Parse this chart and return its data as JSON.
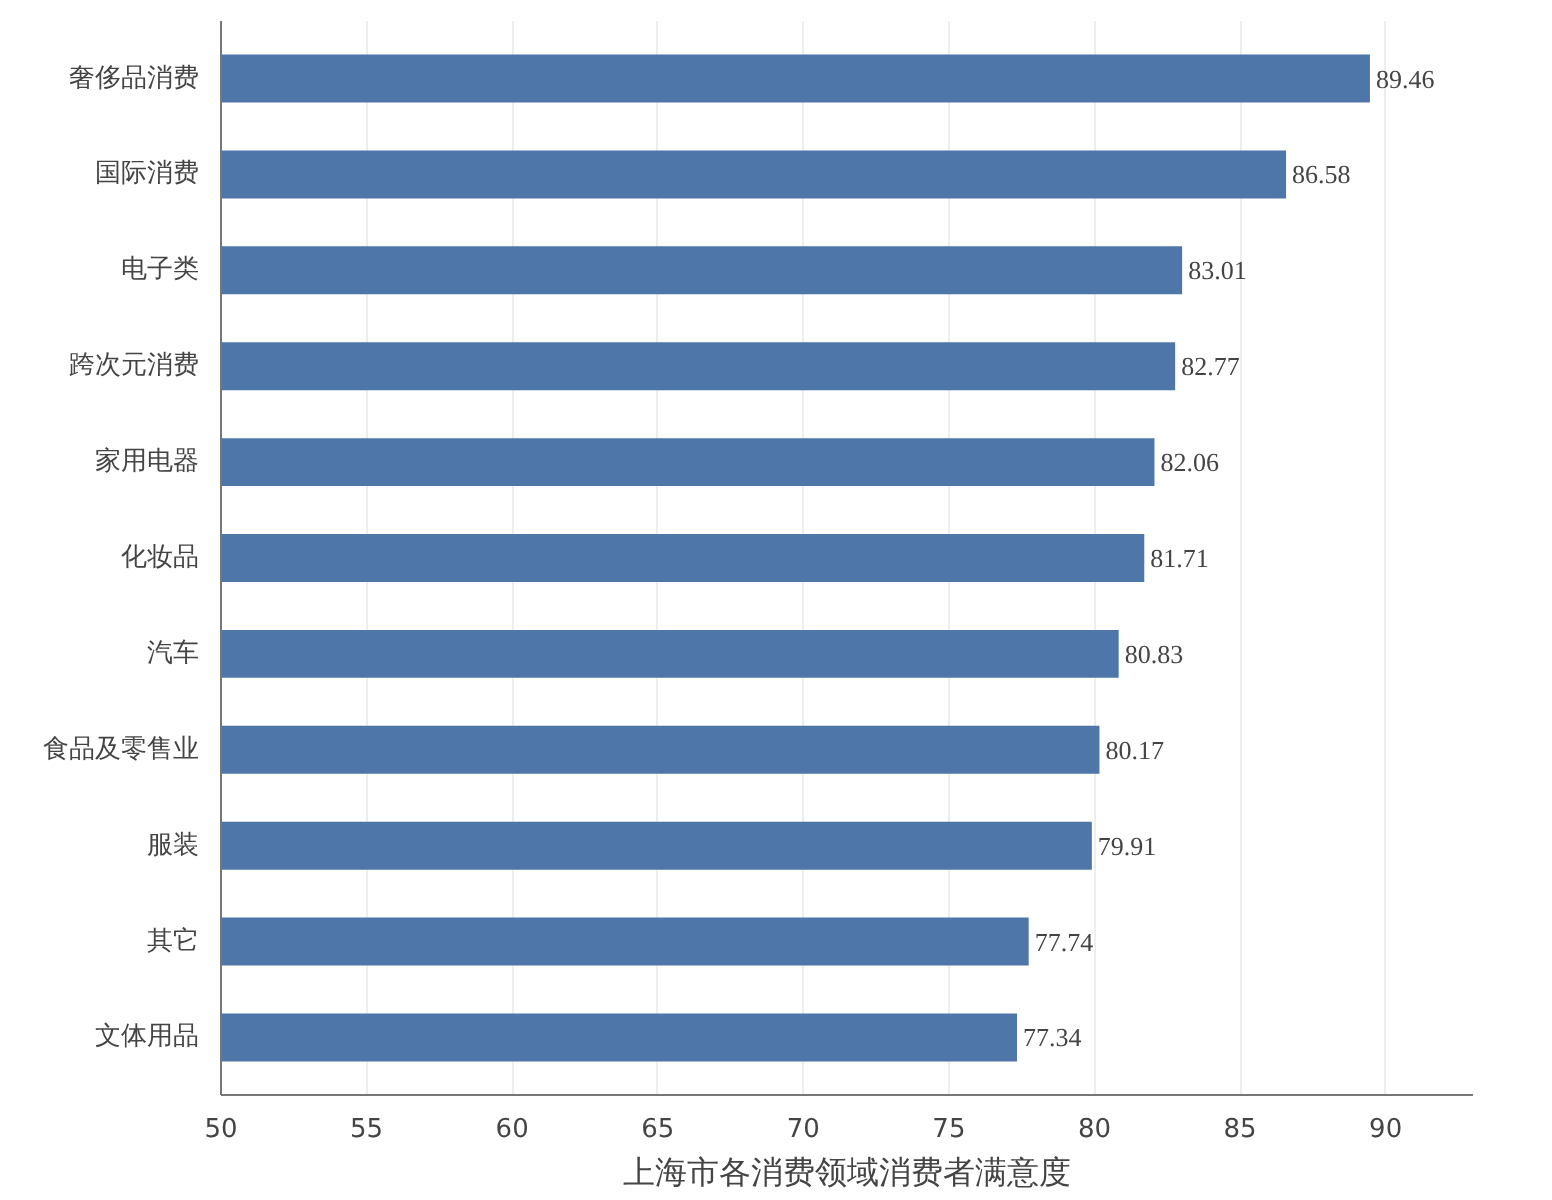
{
  "chart_data": {
    "type": "bar",
    "orientation": "horizontal",
    "title": "上海市各消费领域消费者满意度",
    "categories": [
      "奢侈品消费",
      "国际消费",
      "电子类",
      "跨次元消费",
      "家用电器",
      "化妆品",
      "汽车",
      "食品及零售业",
      "服装",
      "其它",
      "文体用品"
    ],
    "values": [
      89.46,
      86.58,
      83.01,
      82.77,
      82.06,
      81.71,
      80.83,
      80.17,
      79.91,
      77.74,
      77.34
    ],
    "color": "#4e76a8",
    "data_labels": true,
    "xlim": [
      50,
      93
    ],
    "xticks": [
      50,
      55,
      60,
      65,
      70,
      75,
      80,
      85,
      90
    ],
    "grid": "x"
  }
}
